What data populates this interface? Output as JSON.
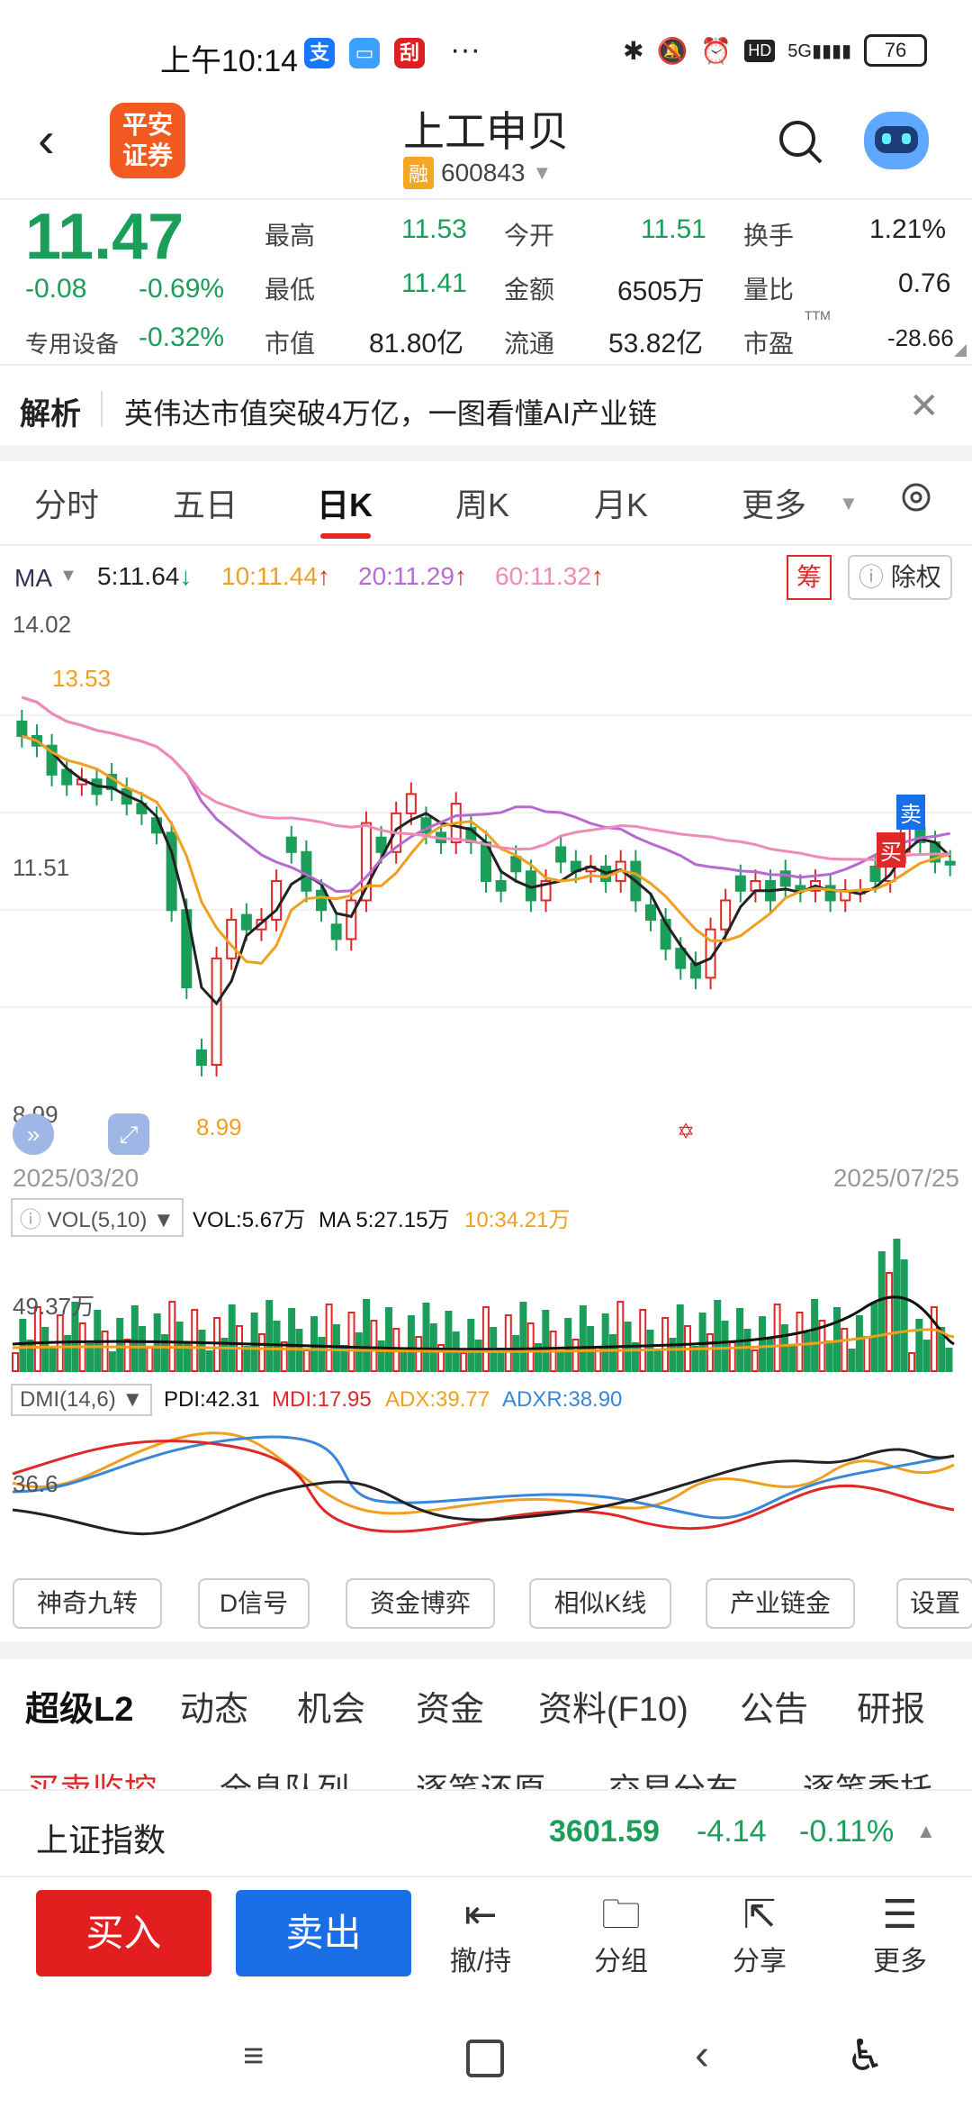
{
  "status": {
    "time": "上午10:14",
    "battery": "76",
    "network": "5G"
  },
  "header": {
    "logo_line1": "平安",
    "logo_line2": "证券",
    "title": "上工申贝",
    "rong": "融",
    "code": "600843"
  },
  "quote": {
    "price": "11.47",
    "change": "-0.08",
    "change_pct": "-0.69%",
    "sector": "专用设备",
    "sector_pct": "-0.32%",
    "high_label": "最高",
    "high": "11.53",
    "open_label": "今开",
    "open": "11.51",
    "turnover_label": "换手",
    "turnover": "1.21%",
    "low_label": "最低",
    "low": "11.41",
    "amount_label": "金额",
    "amount": "6505万",
    "vol_ratio_label": "量比",
    "vol_ratio": "0.76",
    "mcap_label": "市值",
    "mcap": "81.80亿",
    "float_label": "流通",
    "float": "53.82亿",
    "pe_label": "市盈",
    "pe_sup": "TTM",
    "pe": "-28.66"
  },
  "news": {
    "tag": "解析",
    "text": "英伟达市值突破4万亿，一图看懂AI产业链"
  },
  "tabs": [
    "分时",
    "五日",
    "日K",
    "周K",
    "月K",
    "更多"
  ],
  "active_tab": "日K",
  "ma_bar": {
    "ma": "MA",
    "ma5": "5:11.64",
    "ma10": "10:11.44",
    "ma20": "20:11.29",
    "ma60": "60:11.32",
    "chou": "筹",
    "chuquan": "除权"
  },
  "chart_labels": {
    "top": "14.02",
    "mid": "11.51",
    "bottom": "8.99",
    "max_mark": "13.53",
    "min_mark": "8.99",
    "date_start": "2025/03/20",
    "date_end": "2025/07/25",
    "sell_mark": "卖",
    "buy_mark": "买"
  },
  "vol_bar": {
    "label": "VOL(5,10)",
    "vol": "VOL:5.67万",
    "ma5": "MA 5:27.15万",
    "ma10": "10:34.21万",
    "axis": "49.37万"
  },
  "dmi_bar": {
    "label": "DMI(14,6)",
    "pdi": "PDI:42.31",
    "mdi": "MDI:17.95",
    "adx": "ADX:39.77",
    "adxr": "ADXR:38.90",
    "axis": "36.6"
  },
  "chips": [
    "神奇九转",
    "D信号",
    "资金博弈",
    "相似K线",
    "产业链金",
    "设置"
  ],
  "bottom_tabs": [
    "超级L2",
    "动态",
    "机会",
    "资金",
    "资料(F10)",
    "公告",
    "研报"
  ],
  "sub_tabs_partial": [
    "买卖监控",
    "全息队列",
    "逐笔还原",
    "交易分布",
    "逐笔委托"
  ],
  "index_bar": {
    "name": "上证指数",
    "value": "3601.59",
    "change": "-4.14",
    "pct": "-0.11%"
  },
  "actions": {
    "buy": "买入",
    "sell": "卖出",
    "hold": "撤/持",
    "group": "分组",
    "share": "分享",
    "more": "更多"
  },
  "colors": {
    "up": "#e02828",
    "down": "#1a9e5a",
    "ma5": "#222222",
    "ma10": "#f0a020",
    "ma20": "#b86ad0",
    "ma60": "#f08ab8"
  },
  "chart_data": {
    "type": "candlestick",
    "title": "",
    "x_range": [
      "2025/03/20",
      "2025/07/25"
    ],
    "ylim": [
      8.99,
      14.02
    ],
    "ma_values": {
      "ma5": 11.64,
      "ma10": 11.44,
      "ma20": 11.29,
      "ma60": 11.32
    },
    "high": 13.53,
    "low": 8.99
  }
}
